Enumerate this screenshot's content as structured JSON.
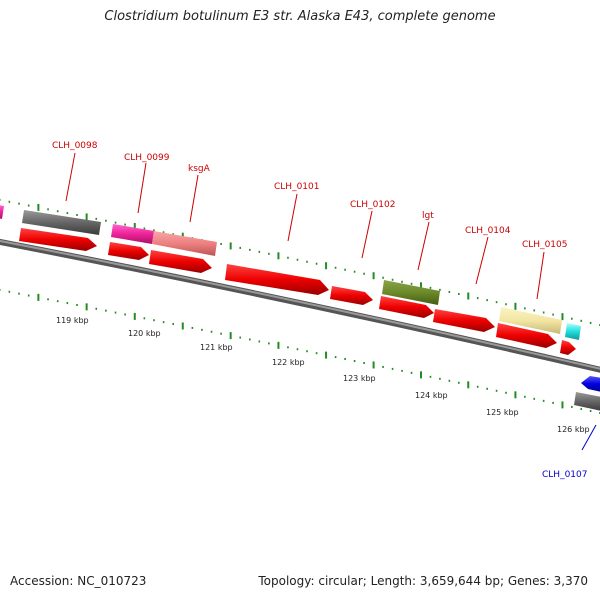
{
  "title": "Clostridium botulinum E3 str. Alaska E43, complete genome",
  "accession": "Accession: NC_010723",
  "summary": "Topology: circular; Length: 3,659,644 bp; Genes: 3,370",
  "colors": {
    "cds": "#ee0000",
    "cds_dark": "#aa0000",
    "backbone": "#888888",
    "tick": "#228b22",
    "label_red": "#cc0000",
    "label_blue": "#0000cc",
    "blue_feature": "#0000dd"
  },
  "scale_labels": [
    "119 kbp",
    "120 kbp",
    "121 kbp",
    "122 kbp",
    "123 kbp",
    "124 kbp",
    "125 kbp",
    "126 kbp"
  ],
  "gene_labels": [
    {
      "text": "CLH_0098",
      "color": "red"
    },
    {
      "text": "CLH_0099",
      "color": "red"
    },
    {
      "text": "ksgA",
      "color": "red"
    },
    {
      "text": "CLH_0101",
      "color": "red"
    },
    {
      "text": "CLH_0102",
      "color": "red"
    },
    {
      "text": "lgt",
      "color": "red"
    },
    {
      "text": "CLH_0104",
      "color": "red"
    },
    {
      "text": "CLH_0105",
      "color": "red"
    },
    {
      "text": "CLH_0107",
      "color": "blue"
    }
  ]
}
